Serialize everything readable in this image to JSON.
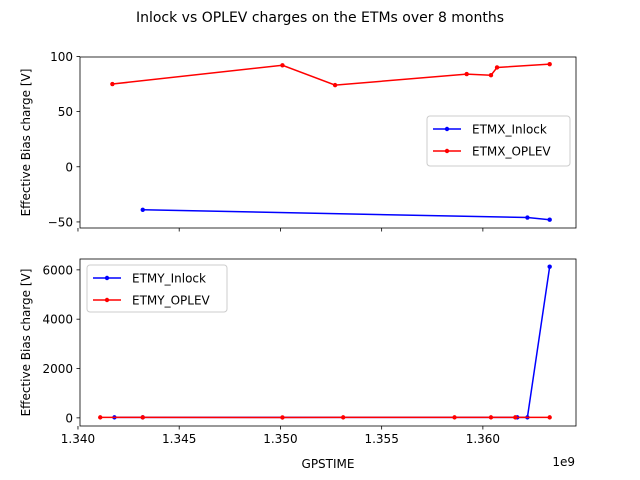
{
  "chart_data": {
    "title": "Inlock vs OPLEV charges on the ETMs over 8 months",
    "x_offset_label": "1e9",
    "xlabel": "GPSTIME",
    "xlim": [
      1.3401,
      1.3646
    ],
    "xticks": [
      1.34,
      1.345,
      1.35,
      1.355,
      1.36
    ],
    "xtick_labels": [
      "1.340",
      "1.345",
      "1.350",
      "1.355",
      "1.360"
    ],
    "shared_x": true,
    "subplots": [
      {
        "type": "line",
        "ylabel": "Effective Bias charge [V]",
        "ylim": [
          -55.5,
          99.5
        ],
        "yticks": [
          -50,
          0,
          50,
          100
        ],
        "ytick_labels": [
          "−50",
          "0",
          "50",
          "100"
        ],
        "show_x_tick_labels": false,
        "legend_position": "center-right",
        "series": [
          {
            "name": "ETMX_Inlock",
            "color": "#0000ff",
            "x": [
              1.3432,
              1.3622,
              1.3633
            ],
            "y": [
              -39,
              -46,
              -48
            ]
          },
          {
            "name": "ETMX_OPLEV",
            "color": "#ff0000",
            "x": [
              1.3417,
              1.3501,
              1.3527,
              1.3592,
              1.3604,
              1.3607,
              1.3633
            ],
            "y": [
              75,
              92,
              74,
              84,
              83,
              90,
              93
            ]
          }
        ]
      },
      {
        "type": "line",
        "ylabel": "Effective Bias charge [V]",
        "ylim": [
          -330,
          6440
        ],
        "yticks": [
          0,
          2000,
          4000,
          6000
        ],
        "ytick_labels": [
          "0",
          "2000",
          "4000",
          "6000"
        ],
        "show_x_tick_labels": true,
        "legend_position": "top-left",
        "series": [
          {
            "name": "ETMY_Inlock",
            "color": "#0000ff",
            "x": [
              1.3418,
              1.3432,
              1.3617,
              1.3622,
              1.3633
            ],
            "y": [
              20,
              20,
              20,
              20,
              6130
            ]
          },
          {
            "name": "ETMY_OPLEV",
            "color": "#ff0000",
            "x": [
              1.3411,
              1.3432,
              1.3501,
              1.3531,
              1.3586,
              1.3604,
              1.3616,
              1.3633
            ],
            "y": [
              20,
              20,
              15,
              20,
              20,
              20,
              20,
              20
            ]
          }
        ]
      }
    ]
  }
}
